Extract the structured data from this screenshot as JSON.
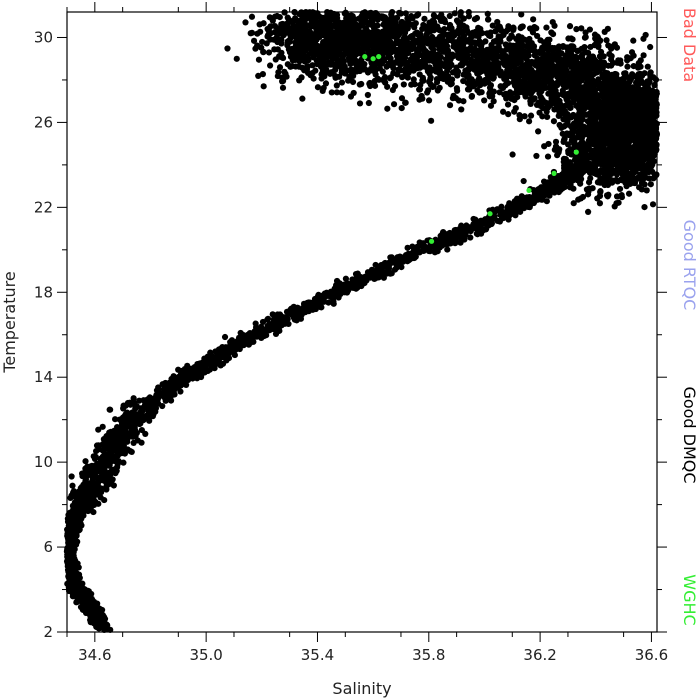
{
  "chart_data": {
    "type": "scatter",
    "title": "",
    "xlabel": "Salinity",
    "ylabel": "Temperature",
    "xlim": [
      34.5,
      36.62
    ],
    "ylim": [
      2,
      31.2
    ],
    "xticks": [
      34.6,
      35.0,
      35.4,
      35.8,
      36.2,
      36.6
    ],
    "xtick_labels": [
      "34.6",
      "35.0",
      "35.4",
      "35.8",
      "36.2",
      "36.6"
    ],
    "yticks": [
      2,
      6,
      10,
      14,
      18,
      22,
      26,
      30
    ],
    "ytick_labels": [
      "2",
      "6",
      "10",
      "14",
      "18",
      "22",
      "26",
      "30"
    ],
    "grid": false,
    "legend_placement": "right, vertical",
    "legend": [
      {
        "label": "Bad Data",
        "color": "#ff5a5a"
      },
      {
        "label": "Good RTQC",
        "color": "#9aa2ee"
      },
      {
        "label": "Good DMQC",
        "color": "#000000"
      },
      {
        "label": "WGHC",
        "color": "#33ee33"
      }
    ],
    "series": [
      {
        "name": "Good DMQC",
        "color": "#000000",
        "x": [
          34.63,
          34.6,
          34.56,
          34.53,
          34.51,
          34.5,
          34.51,
          34.53,
          34.56,
          34.6,
          34.63,
          34.67,
          34.72,
          34.79,
          34.87,
          34.97,
          35.08,
          35.2,
          35.33,
          35.47,
          35.62,
          35.78,
          35.94,
          36.08,
          36.2,
          36.29,
          36.37,
          36.44,
          36.5,
          36.55,
          36.58,
          36.6,
          36.58,
          36.52,
          36.44,
          36.34,
          36.22,
          36.08,
          35.93,
          35.78,
          35.65,
          35.55,
          35.46,
          35.38,
          35.3
        ],
        "y": [
          2.2,
          2.9,
          3.6,
          4.3,
          5.0,
          5.8,
          6.6,
          7.4,
          8.2,
          9.0,
          9.9,
          10.8,
          11.7,
          12.6,
          13.5,
          14.4,
          15.3,
          16.2,
          17.1,
          18.0,
          19.0,
          20.0,
          20.9,
          21.8,
          22.6,
          23.4,
          24.1,
          24.6,
          25.0,
          25.3,
          25.6,
          25.8,
          26.2,
          26.8,
          27.4,
          27.9,
          28.4,
          28.8,
          29.2,
          29.5,
          29.7,
          29.9,
          30.1,
          30.0,
          29.8
        ]
      },
      {
        "name": "WGHC",
        "color": "#33ee33",
        "x": [
          35.57,
          35.6,
          35.62,
          35.81,
          36.02,
          36.16,
          36.25,
          36.33
        ],
        "y": [
          29.1,
          29.0,
          29.1,
          20.4,
          21.7,
          22.8,
          23.6,
          24.6
        ]
      }
    ]
  }
}
